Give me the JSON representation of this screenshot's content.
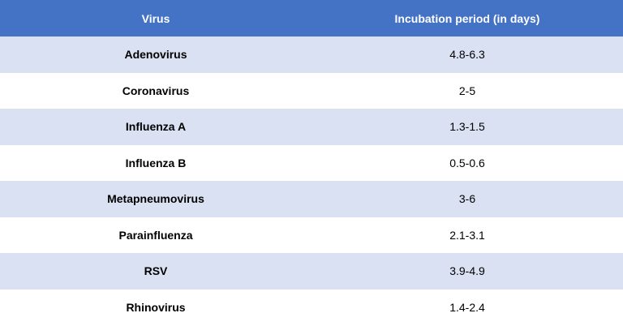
{
  "table": {
    "headers": {
      "virus": "Virus",
      "incubation": "Incubation period (in days)"
    },
    "rows": [
      {
        "virus": "Adenovirus",
        "incubation": "4.8-6.3"
      },
      {
        "virus": "Coronavirus",
        "incubation": "2-5"
      },
      {
        "virus": "Influenza A",
        "incubation": "1.3-1.5"
      },
      {
        "virus": "Influenza B",
        "incubation": "0.5-0.6"
      },
      {
        "virus": "Metapneumovirus",
        "incubation": "3-6"
      },
      {
        "virus": "Parainfluenza",
        "incubation": "2.1-3.1"
      },
      {
        "virus": "RSV",
        "incubation": "3.9-4.9"
      },
      {
        "virus": "Rhinovirus",
        "incubation": "1.4-2.4"
      }
    ],
    "colors": {
      "header_bg": "#4472c4",
      "band_bg": "#d9e1f2",
      "plain_bg": "#ffffff"
    }
  }
}
